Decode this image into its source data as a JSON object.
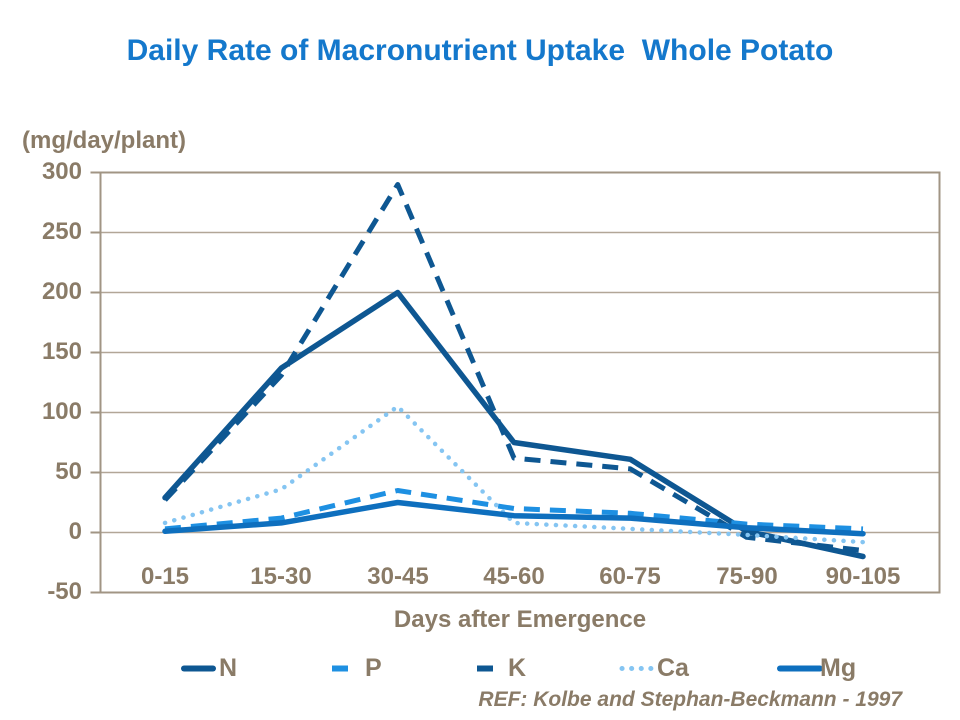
{
  "title": "Daily Rate of Macronutrient Uptake  Whole Potato",
  "reference": "REF: Kolbe and Stephan-Beckmann - 1997",
  "colors": {
    "title_blue": "#1478cc",
    "text_brown": "#8a7b67",
    "gridline": "#b2a697",
    "plot_border": "#a19584"
  },
  "chart_data": {
    "type": "line",
    "title": "Daily Rate of Macronutrient Uptake  Whole Potato",
    "ylabel": "(mg/day/plant)",
    "xlabel": "Days after Emergence",
    "ylim": [
      -50,
      300
    ],
    "ytick_step": 50,
    "grid": "horizontal",
    "legend_position": "bottom",
    "yticks": [
      "300",
      "250",
      "200",
      "150",
      "100",
      "50",
      "0",
      "-50"
    ],
    "categories": [
      "0-15",
      "15-30",
      "30-45",
      "45-60",
      "60-75",
      "75-90",
      "90-105"
    ],
    "series": [
      {
        "name": "N",
        "style": "solid",
        "color": "#0e5792",
        "values": [
          29,
          137,
          200,
          75,
          61,
          1,
          -20
        ]
      },
      {
        "name": "P",
        "style": "dash",
        "color": "#1e90e2",
        "values": [
          3,
          12,
          35,
          20,
          16,
          7,
          3
        ]
      },
      {
        "name": "K",
        "style": "dash",
        "color": "#0e5792",
        "values": [
          27,
          131,
          290,
          62,
          53,
          -4,
          -15
        ]
      },
      {
        "name": "Ca",
        "style": "dot",
        "color": "#85c5f2",
        "values": [
          8,
          36,
          105,
          8,
          3,
          -2,
          -8
        ]
      },
      {
        "name": "Mg",
        "style": "solid",
        "color": "#0e6fbe",
        "values": [
          1,
          8,
          25,
          14,
          12,
          4,
          -1
        ]
      }
    ]
  }
}
